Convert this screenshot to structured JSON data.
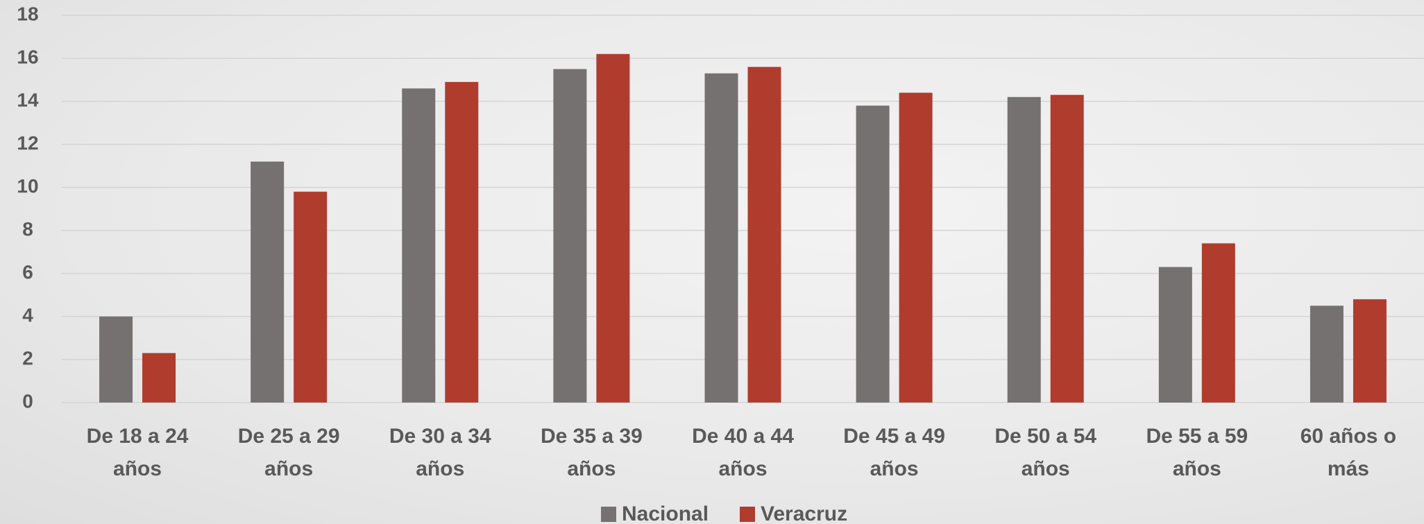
{
  "chart_data": {
    "type": "bar",
    "categories": [
      "De 18 a 24 años",
      "De 25 a 29 años",
      "De 30 a 34 años",
      "De 35 a 39 años",
      "De 40 a 44 años",
      "De 45 a 49 años",
      "De 50 a 54 años",
      "De 55 a 59 años",
      "60 años o más"
    ],
    "series": [
      {
        "name": "Nacional",
        "color": "#767171",
        "values": [
          4.0,
          11.2,
          14.6,
          15.5,
          15.3,
          13.8,
          14.2,
          6.3,
          4.5
        ]
      },
      {
        "name": "Veracruz",
        "color": "#b03c2e",
        "values": [
          2.3,
          9.8,
          14.9,
          16.2,
          15.6,
          14.4,
          14.3,
          7.4,
          4.8
        ]
      }
    ],
    "ylim": [
      0,
      18
    ],
    "yticks": [
      0,
      2,
      4,
      6,
      8,
      10,
      12,
      14,
      16,
      18
    ],
    "grid": true,
    "legend": "bottom"
  }
}
